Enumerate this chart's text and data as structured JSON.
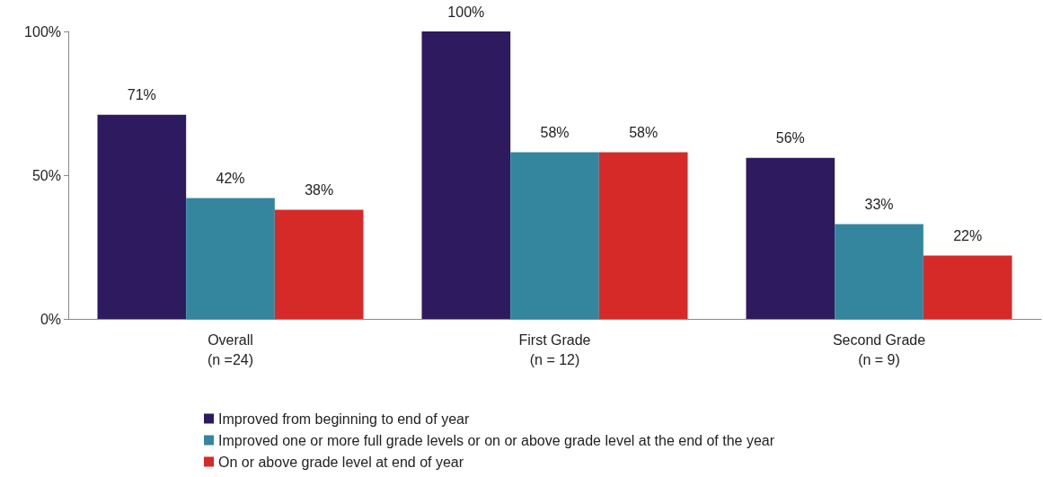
{
  "chart_data": {
    "type": "bar",
    "categories": [
      "Overall\n(n =24)",
      "First Grade\n(n = 12)",
      "Second Grade\n(n = 9)"
    ],
    "series": [
      {
        "name": "Improved from beginning to end of year",
        "color": "#2e1a5e",
        "values": [
          71,
          100,
          56
        ],
        "value_labels": [
          "71%",
          "100%",
          "56%"
        ]
      },
      {
        "name": "Improved one or more full grade levels or on or above grade level at the end of the year",
        "color": "#33869e",
        "values": [
          42,
          58,
          33
        ],
        "value_labels": [
          "42%",
          "58%",
          "33%"
        ]
      },
      {
        "name": "On or above grade level at end of year",
        "color": "#d62a29",
        "values": [
          38,
          58,
          22
        ],
        "value_labels": [
          "38%",
          "58%",
          "22%"
        ]
      }
    ],
    "ylim": [
      0,
      100
    ],
    "yticks": [
      {
        "value": 0,
        "label": "0%"
      },
      {
        "value": 50,
        "label": "50%"
      },
      {
        "value": 100,
        "label": "100%"
      }
    ],
    "grid": false,
    "legend": "bottom"
  }
}
